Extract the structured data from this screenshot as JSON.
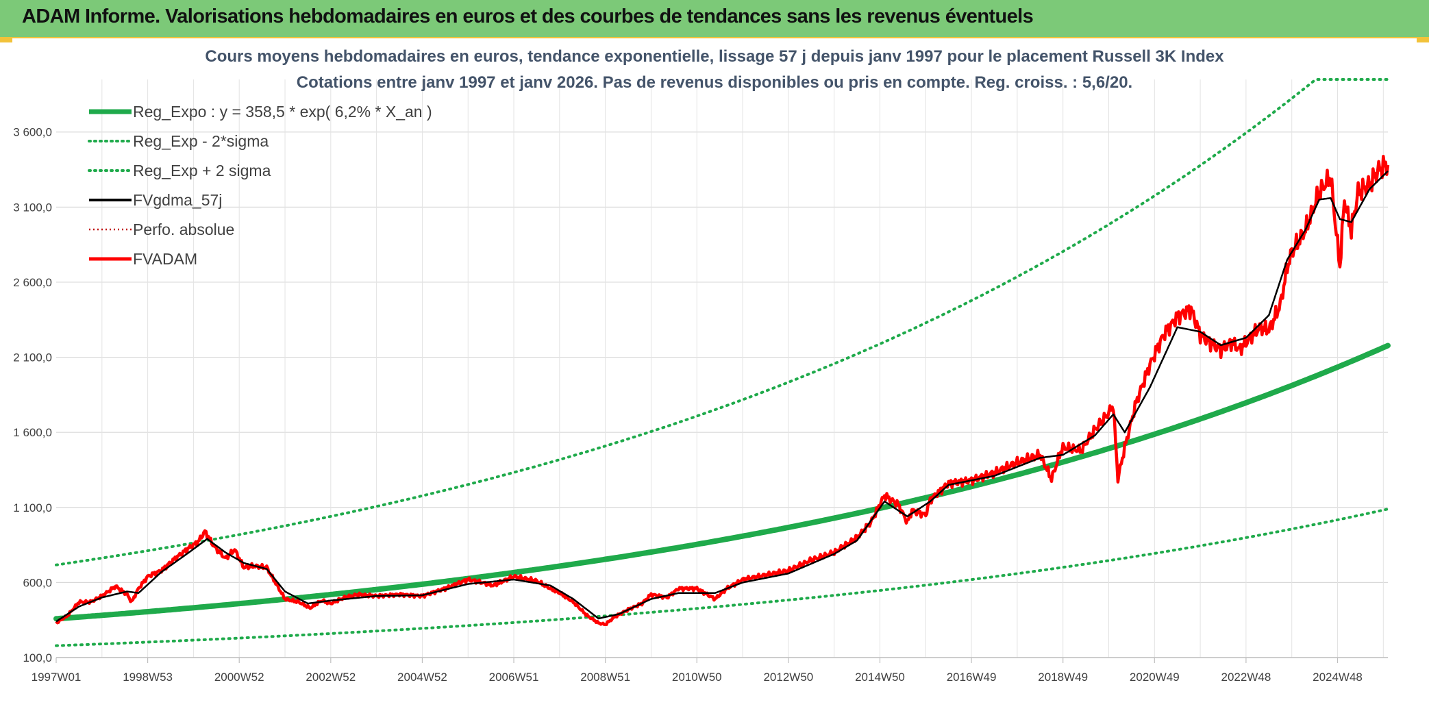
{
  "header": {
    "title": "ADAM Informe. Valorisations hebdomadaires en euros et des courbes de tendances sans les revenus éventuels"
  },
  "colors": {
    "header_bg": "#7cc978",
    "reg_expo": "#1faa4b",
    "band": "#1faa4b",
    "fvgdma": "#000000",
    "perfo": "#c00000",
    "fvadam": "#ff0000"
  },
  "chart_data": {
    "type": "line",
    "title": [
      "Cours moyens hebdomadaires en euros, tendance exponentielle, lissage 57 j depuis janv 1997 pour le placement Russell 3K Index",
      "Cotations entre janv 1997 et janv 2026. Pas de revenus disponibles ou pris en compte. Reg. croiss. : 5,6/20."
    ],
    "xlabel": "",
    "ylabel": "",
    "x_tick_labels": [
      "1997W01",
      "1998W53",
      "2000W52",
      "2002W52",
      "2004W52",
      "2006W51",
      "2008W51",
      "2010W50",
      "2012W50",
      "2014W50",
      "2016W49",
      "2018W49",
      "2020W49",
      "2022W48",
      "2024W48"
    ],
    "x_tick_years": [
      1997.0,
      1999.0,
      2001.0,
      2003.0,
      2005.0,
      2007.0,
      2009.0,
      2011.0,
      2013.0,
      2015.0,
      2017.0,
      2019.0,
      2021.0,
      2023.0,
      2025.0
    ],
    "x_range": [
      1997.0,
      2026.1
    ],
    "ylim": [
      100,
      3950
    ],
    "y_ticks": [
      100,
      600,
      1100,
      1600,
      2100,
      2600,
      3100,
      3600
    ],
    "y_tick_labels": [
      "100,0",
      "600,0",
      "1 100,0",
      "1 600,0",
      "2 100,0",
      "2 600,0",
      "3 100,0",
      "3 600,0"
    ],
    "grid": true,
    "legend_position": "top-left",
    "legend": [
      {
        "label": "Reg_Expo : y = 358,5 * exp( 6,2% *  X_an )",
        "style": "solid-thick",
        "color": "#1faa4b"
      },
      {
        "label": "Reg_Exp - 2*sigma",
        "style": "dotted",
        "color": "#1faa4b"
      },
      {
        "label": "Reg_Exp + 2 sigma",
        "style": "dotted",
        "color": "#1faa4b"
      },
      {
        "label": "FVgdma_57j",
        "style": "solid",
        "color": "#000000"
      },
      {
        "label": "Perfo. absolue",
        "style": "dotted-thin",
        "color": "#c00000"
      },
      {
        "label": "FVADAM",
        "style": "solid-thick",
        "color": "#ff0000"
      }
    ],
    "regression": {
      "a": 358.5,
      "rate": 0.062,
      "band_lower_factor": 0.5,
      "band_upper_factor": 2.0,
      "band_upper_cap": 3950
    },
    "series": [
      {
        "name": "FVADAM",
        "x": [
          1997.0,
          1997.25,
          1997.5,
          1997.75,
          1998.0,
          1998.3,
          1998.55,
          1998.65,
          1998.8,
          1999.0,
          1999.3,
          1999.6,
          1999.9,
          2000.1,
          2000.25,
          2000.45,
          2000.7,
          2000.9,
          2001.1,
          2001.3,
          2001.6,
          2001.75,
          2002.0,
          2002.3,
          2002.55,
          2002.8,
          2003.0,
          2003.3,
          2003.6,
          2004.0,
          2004.5,
          2005.0,
          2005.5,
          2006.0,
          2006.3,
          2006.55,
          2007.0,
          2007.5,
          2007.8,
          2008.0,
          2008.3,
          2008.6,
          2008.85,
          2009.0,
          2009.2,
          2009.5,
          2009.8,
          2010.0,
          2010.35,
          2010.6,
          2011.0,
          2011.4,
          2011.65,
          2011.9,
          2012.0,
          2012.5,
          2013.0,
          2013.5,
          2014.0,
          2014.5,
          2014.8,
          2015.1,
          2015.4,
          2015.6,
          2015.7,
          2016.0,
          2016.1,
          2016.5,
          2017.0,
          2017.5,
          2018.0,
          2018.5,
          2018.75,
          2018.95,
          2019.0,
          2019.4,
          2019.7,
          2019.95,
          2020.1,
          2020.2,
          2020.35,
          2020.6,
          2020.9,
          2021.2,
          2021.5,
          2021.8,
          2022.0,
          2022.2,
          2022.45,
          2022.7,
          2022.85,
          2023.0,
          2023.3,
          2023.5,
          2023.75,
          2023.9,
          2024.0,
          2024.3,
          2024.6,
          2024.85,
          2025.05,
          2025.15,
          2025.25,
          2025.3,
          2025.45,
          2025.7,
          2025.9,
          2026.05,
          2026.1
        ],
        "values": [
          330,
          380,
          470,
          470,
          510,
          575,
          520,
          470,
          560,
          640,
          680,
          760,
          830,
          870,
          940,
          840,
          760,
          820,
          700,
          710,
          700,
          620,
          490,
          470,
          430,
          480,
          460,
          500,
          520,
          510,
          520,
          510,
          560,
          620,
          600,
          580,
          640,
          610,
          560,
          530,
          470,
          380,
          330,
          320,
          370,
          420,
          460,
          520,
          500,
          560,
          560,
          490,
          560,
          600,
          620,
          650,
          680,
          750,
          800,
          900,
          1000,
          1180,
          1120,
          1000,
          1080,
          1050,
          1150,
          1260,
          1280,
          1330,
          1400,
          1450,
          1290,
          1470,
          1500,
          1480,
          1620,
          1710,
          1780,
          1290,
          1500,
          1800,
          2050,
          2250,
          2370,
          2420,
          2250,
          2200,
          2150,
          2200,
          2150,
          2200,
          2300,
          2280,
          2450,
          2700,
          2800,
          2950,
          3200,
          3300,
          2700,
          3150,
          3000,
          2950,
          3200,
          3250,
          3350,
          3380,
          3380
        ]
      },
      {
        "name": "FVgdma_57j",
        "x": [
          1997.0,
          1997.5,
          1998.0,
          1998.55,
          1998.8,
          1999.3,
          1999.9,
          2000.3,
          2000.7,
          2001.1,
          2001.6,
          2002.0,
          2002.5,
          2003.0,
          2004.0,
          2005.0,
          2006.0,
          2007.0,
          2007.8,
          2008.3,
          2008.85,
          2009.3,
          2010.0,
          2010.6,
          2011.4,
          2012.0,
          2013.0,
          2014.0,
          2014.5,
          2015.1,
          2015.6,
          2016.1,
          2016.5,
          2017.5,
          2018.5,
          2019.0,
          2019.7,
          2020.1,
          2020.35,
          2020.9,
          2021.5,
          2022.0,
          2022.45,
          2023.0,
          2023.5,
          2023.9,
          2024.3,
          2024.6,
          2024.85,
          2025.05,
          2025.3,
          2025.7,
          2026.1
        ],
        "values": [
          340,
          440,
          500,
          540,
          530,
          670,
          800,
          890,
          800,
          730,
          690,
          540,
          460,
          480,
          510,
          515,
          590,
          620,
          580,
          490,
          360,
          390,
          490,
          530,
          530,
          600,
          660,
          790,
          880,
          1140,
          1040,
          1140,
          1250,
          1310,
          1430,
          1450,
          1580,
          1720,
          1600,
          1900,
          2300,
          2270,
          2180,
          2230,
          2380,
          2750,
          2950,
          3150,
          3160,
          3020,
          3000,
          3220,
          3340
        ]
      }
    ]
  }
}
